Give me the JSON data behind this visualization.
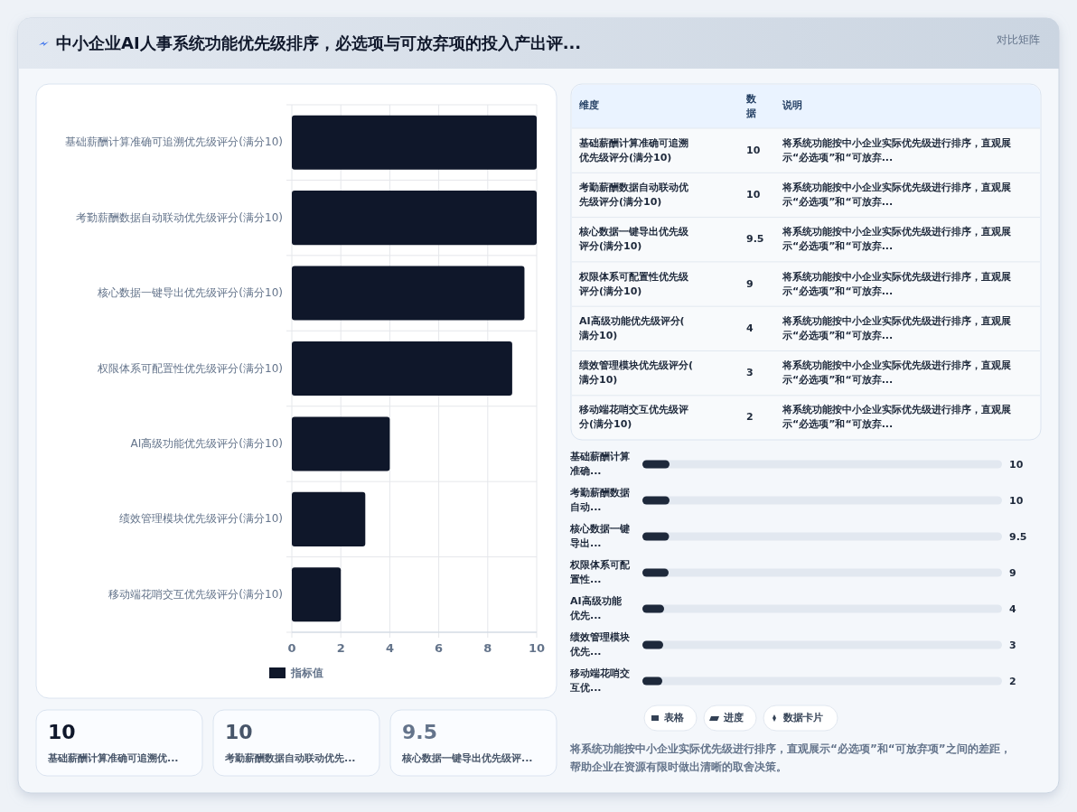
{
  "chart_data": [
    {
      "type": "other",
      "title": "中小企业AI人事系统功能优先级排序，必选项与可放弃项的投入产出评...",
      "subtitle": "对比矩阵"
    },
    {
      "type": "bar",
      "orientation": "horizontal",
      "categories": [
        "基础薪酬计算准确可追溯优先级评分(满分10)",
        "考勤薪酬数据自动联动优先级评分(满分10)",
        "核心数据一键导出优先级评分(满分10)",
        "权限体系可配置性优先级评分(满分10)",
        "AI高级功能优先级评分(满分10)",
        "绩效管理模块优先级评分(满分10)",
        "移动端花哨交互优先级评分(满分10)"
      ],
      "series": [
        {
          "name": "指标值",
          "color": "#0f172a",
          "values": [
            10,
            10,
            9.5,
            9,
            4,
            3,
            2
          ]
        }
      ],
      "xlim": [
        0,
        10
      ],
      "xticks": [
        0,
        2,
        4,
        6,
        8,
        10
      ],
      "grid": true,
      "legend": "bottom"
    },
    {
      "type": "other",
      "annotations": [
        "维度",
        "数据",
        "说明",
        "将系统功能按中小企业实际优先级进行排序，直观展示“必选项”和“可放弃...",
        "将系统功能按中小企业实际优先级进行排序，直观展示“必选项”和“可放弃...",
        "将系统功能按中小企业实际优先级进行排序，直观展示“必选项”和“可放弃...",
        "将系统功能按中小企业实际优先级进行排序，直观展示“必选项”和“可放弃...",
        "将系统功能按中小企业实际优先级进行排序，直观展示“必选项”和“可放弃...",
        "将系统功能按中小企业实际优先级进行排序，直观展示“必选项”和“可放弃...",
        "将系统功能按中小企业实际优先级进行排序，直观展示“必选项”和“可放弃..."
      ],
      "categories": [
        "基础薪酬计算准确可追溯优先级评分(满分10)",
        "考勤薪酬数据自动联动优先级评分(满分10)",
        "核心数据一键导出优先级评分(满分10)",
        "权限体系可配置性优先级评分(满分10)",
        "AI高级功能优先级评分(满分10)",
        "绩效管理模块优先级评分(满分10)",
        "移动端花哨交互优先级评分(满分10)"
      ],
      "values": [
        10,
        10,
        9.5,
        9,
        4,
        3,
        2
      ],
      "data_labels": true
    },
    {
      "type": "other",
      "categories": [
        "基础薪酬计算准确...",
        "考勤薪酬数据自动...",
        "核心数据一键导出...",
        "权限体系可配置性...",
        "AI高级功能优先...",
        "绩效管理模块优先...",
        "移动端花哨交互优..."
      ],
      "values": [
        10,
        10,
        9.5,
        9,
        4,
        3,
        2
      ],
      "data_labels": true,
      "color": "#1e293b"
    },
    {
      "type": "other",
      "categories": [
        "表格",
        "进度",
        "数据卡片"
      ],
      "annotations": [
        "将系统功能按中小企业实际优先级进行排序，直观展示“必选项”和“可放弃项”之间的差距，帮助企业在资源有限时做出清晰的取舍决策。"
      ]
    },
    {
      "type": "other",
      "categories": [
        "基础薪酬计算准确可追溯优...",
        "考勤薪酬数据自动联动优先...",
        "核心数据一键导出优先级评..."
      ],
      "values": [
        10,
        10,
        9.5
      ],
      "data_labels": true
    }
  ]
}
